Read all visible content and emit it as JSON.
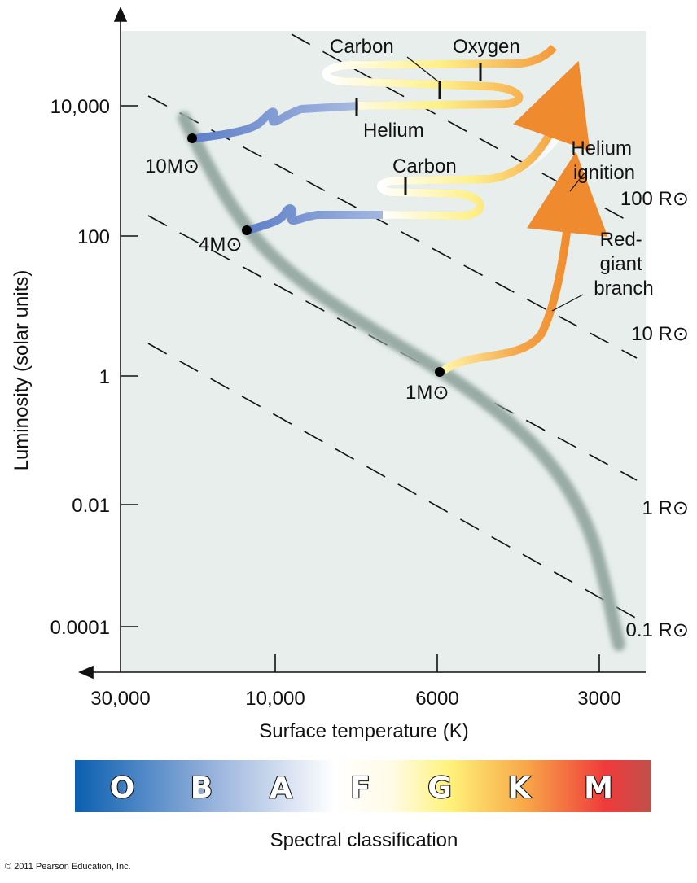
{
  "y_axis": {
    "label": "Luminosity (solar units)",
    "ticks": [
      "10,000",
      "100",
      "1",
      "0.01",
      "0.0001"
    ]
  },
  "x_axis": {
    "label": "Surface temperature (K)",
    "ticks": [
      "30,000",
      "10,000",
      "6000",
      "3000"
    ]
  },
  "radius_lines": [
    "100 R⊙",
    "10 R⊙",
    "1 R⊙",
    "0.1 R⊙"
  ],
  "masses": [
    "10M⊙",
    "4M⊙",
    "1M⊙"
  ],
  "annotations": {
    "carbon_high": "Carbon",
    "oxygen": "Oxygen",
    "helium": "Helium",
    "carbon_low": "Carbon",
    "helium_ignition": [
      "Helium",
      "ignition"
    ],
    "red_giant_branch": [
      "Red-",
      "giant",
      "branch"
    ]
  },
  "spectral": {
    "classes": [
      "O",
      "B",
      "A",
      "F",
      "G",
      "K",
      "M"
    ],
    "label": "Spectral classification"
  },
  "copyright": "© 2011 Pearson Education, Inc."
}
